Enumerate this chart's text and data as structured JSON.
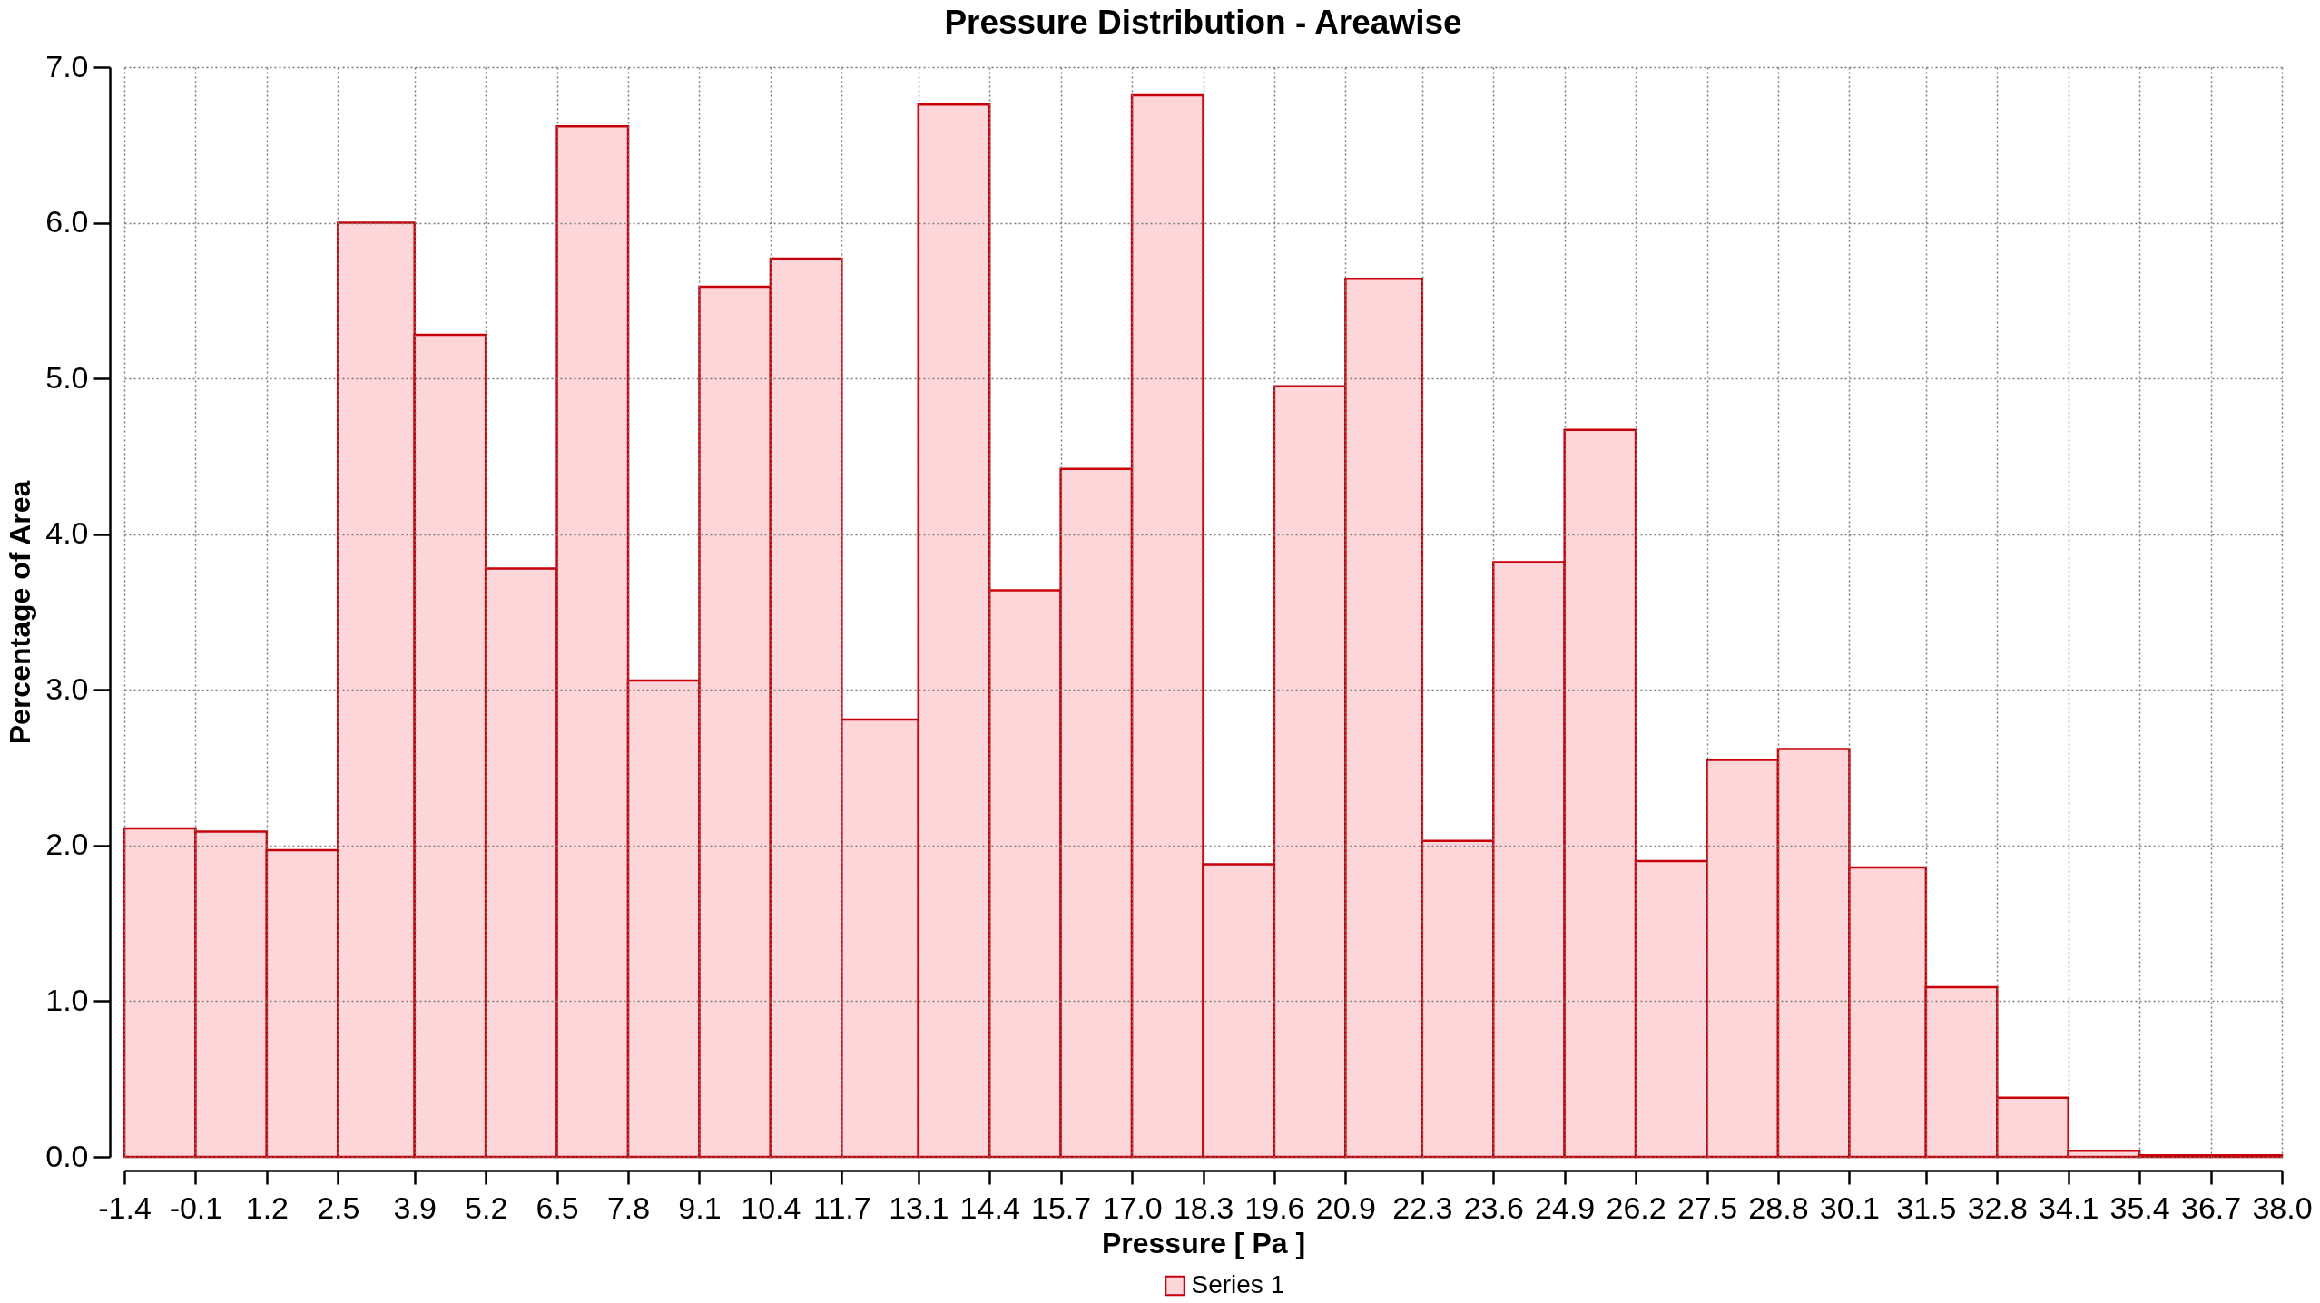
{
  "chart_data": {
    "type": "histogram",
    "title": "Pressure Distribution - Areawise",
    "xlabel": "Pressure [ Pa ]",
    "ylabel": "Percentage of Area",
    "bins": [
      -1.4,
      -0.1,
      1.2,
      2.5,
      3.9,
      5.2,
      6.5,
      7.8,
      9.1,
      10.4,
      11.7,
      13.1,
      14.4,
      15.7,
      17.0,
      18.3,
      19.6,
      20.9,
      22.3,
      23.6,
      24.9,
      26.2,
      27.5,
      28.8,
      30.1,
      31.5,
      32.8,
      34.1,
      35.4,
      36.7,
      38.0
    ],
    "series": [
      {
        "name": "Series 1",
        "color": "#fdd6d9",
        "values": [
          2.11,
          2.09,
          1.97,
          6.0,
          5.28,
          3.78,
          6.62,
          3.06,
          5.59,
          5.77,
          2.81,
          6.76,
          3.64,
          4.42,
          6.82,
          1.88,
          4.95,
          5.64,
          2.03,
          3.82,
          4.67,
          1.9,
          2.55,
          2.62,
          1.86,
          1.09,
          0.38,
          0.04,
          0.01,
          0.01
        ]
      }
    ],
    "xlim": [
      -1.4,
      38.0
    ],
    "xticks": [
      -1.4,
      -0.1,
      1.2,
      2.5,
      3.9,
      5.2,
      6.5,
      7.8,
      9.1,
      10.4,
      11.7,
      13.1,
      14.4,
      15.7,
      {
        "value": 17,
        "label": "17.0"
      },
      18.3,
      19.6,
      20.9,
      22.3,
      23.6,
      24.9,
      26.2,
      27.5,
      28.8,
      30.1,
      31.5,
      32.8,
      34.1,
      35.4,
      36.7,
      {
        "value": 38,
        "label": "38.0"
      }
    ],
    "ylim": [
      0,
      7
    ],
    "yticks": [
      {
        "value": 0,
        "label": "0.0"
      },
      {
        "value": 1,
        "label": "1.0"
      },
      {
        "value": 2,
        "label": "2.0"
      },
      {
        "value": 3,
        "label": "3.0"
      },
      {
        "value": 4,
        "label": "4.0"
      },
      {
        "value": 5,
        "label": "5.0"
      },
      {
        "value": 6,
        "label": "6.0"
      },
      {
        "value": 7,
        "label": "7.0"
      }
    ],
    "grid": true,
    "legend": "bottom"
  }
}
